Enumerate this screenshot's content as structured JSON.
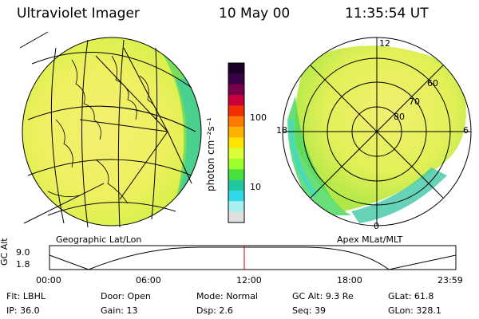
{
  "header": {
    "instrument": "Ultraviolet Imager",
    "date": "10 May 00",
    "time": "11:35:54 UT"
  },
  "left_panel": {
    "caption": "Geographic Lat/Lon"
  },
  "right_panel": {
    "caption": "Apex MLat/MLT",
    "mlt_labels": [
      "12",
      "18",
      "6",
      "0"
    ],
    "mlat_labels": [
      "60",
      "70",
      "80"
    ]
  },
  "colorbar": {
    "unit_label": "photon cm⁻²s⁻¹",
    "ticks": [
      "100",
      "10"
    ],
    "colors": [
      "#1a0026",
      "#3a0048",
      "#7a004a",
      "#c8003a",
      "#f03000",
      "#ff7a00",
      "#ffb000",
      "#ffe400",
      "#d8ff3a",
      "#9cff2a",
      "#48e03a",
      "#20c8a0",
      "#30d8e8",
      "#a8f0f0",
      "#e0e0e0"
    ]
  },
  "timeline": {
    "y_label": "GC Alt",
    "y_ticks": [
      "9.0",
      "1.8"
    ],
    "x_ticks": [
      "00:00",
      "06:00",
      "12:00",
      "18:00",
      "23:59"
    ],
    "marker_time": "11:35:54",
    "curve_color": "#000000",
    "marker_color": "#cc0000"
  },
  "status": [
    {
      "label": "Flt:",
      "value": "LBHL"
    },
    {
      "label": "Door:",
      "value": "Open"
    },
    {
      "label": "Mode:",
      "value": "Normal"
    },
    {
      "label": "GC Alt:",
      "value": "9.3 Re"
    },
    {
      "label": "GLat:",
      "value": "61.8"
    },
    {
      "label": "IP:",
      "value": "36.0"
    },
    {
      "label": "Gain:",
      "value": "13"
    },
    {
      "label": "Dsp:",
      "value": "2.6"
    },
    {
      "label": "Seq:",
      "value": "39"
    },
    {
      "label": "GLon:",
      "value": "328.1"
    }
  ]
}
